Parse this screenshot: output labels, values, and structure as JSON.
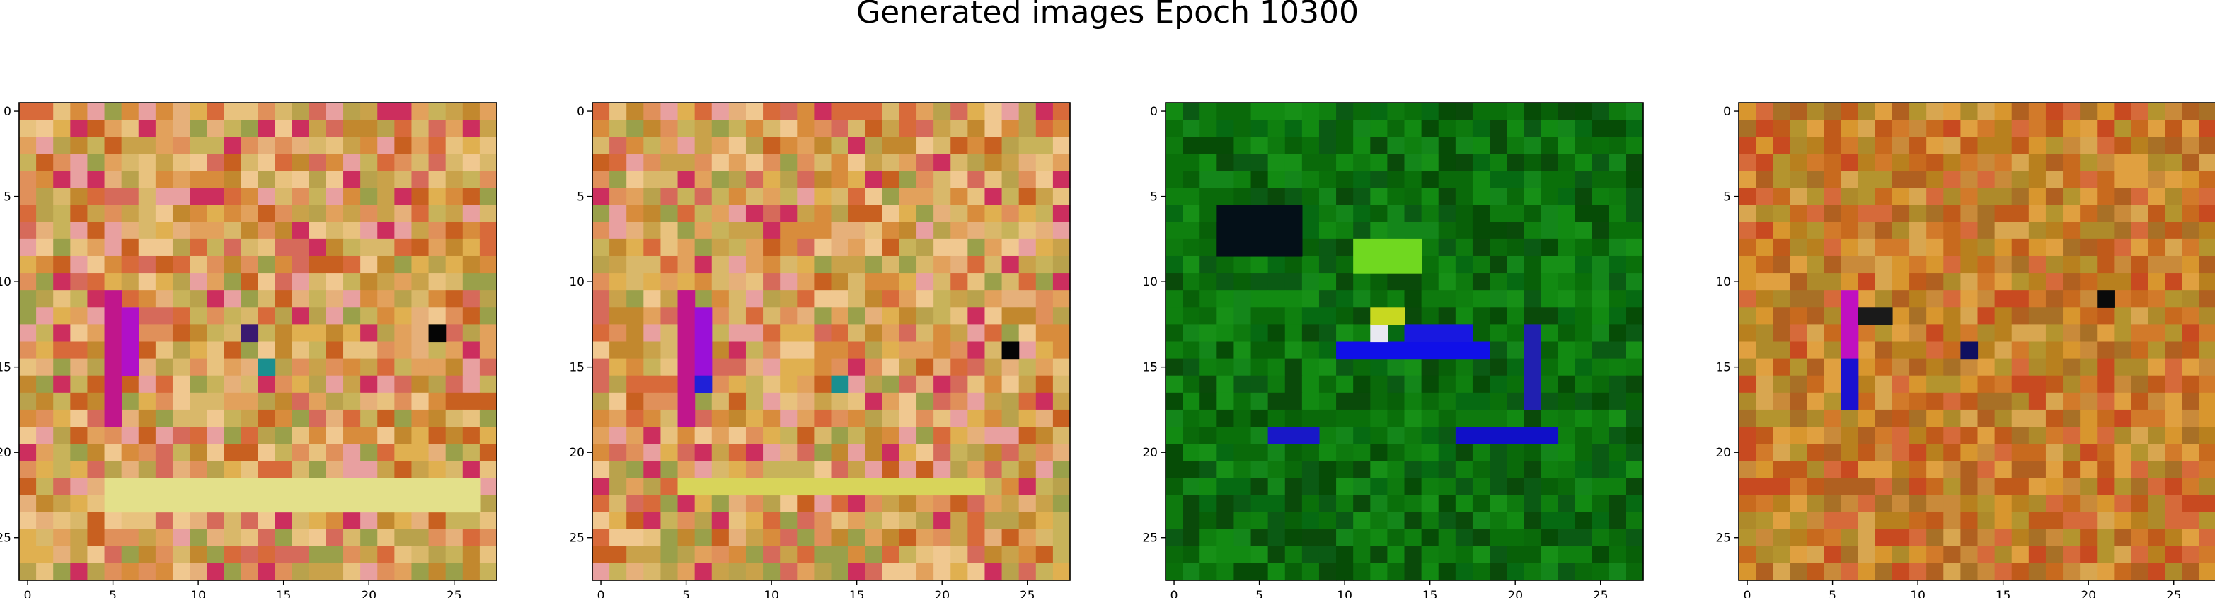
{
  "figure": {
    "title": "Generated images Epoch 10300"
  },
  "chart_data": [
    {
      "type": "heatmap",
      "name": "generated-image-1",
      "grid_size": [
        28,
        28
      ],
      "xlim": [
        -0.5,
        27.5
      ],
      "ylim": [
        27.5,
        -0.5
      ],
      "x_ticks": [
        0,
        5,
        10,
        15,
        20,
        25
      ],
      "y_ticks": [
        0,
        5,
        10,
        15,
        20,
        25
      ],
      "palette": "warm",
      "seed": 11,
      "highlights": [
        {
          "x": 5,
          "y": 11,
          "w": 1,
          "h": 8,
          "color": "#c0168c"
        },
        {
          "x": 6,
          "y": 12,
          "w": 1,
          "h": 4,
          "color": "#b010c8"
        },
        {
          "x": 5,
          "y": 22,
          "w": 22,
          "h": 2,
          "color": "#e3e08a"
        },
        {
          "x": 24,
          "y": 13,
          "w": 1,
          "h": 1,
          "color": "#050505"
        },
        {
          "x": 14,
          "y": 15,
          "w": 1,
          "h": 1,
          "color": "#1a8f8f"
        },
        {
          "x": 13,
          "y": 13,
          "w": 1,
          "h": 1,
          "color": "#3a1a70"
        }
      ]
    },
    {
      "type": "heatmap",
      "name": "generated-image-2",
      "grid_size": [
        28,
        28
      ],
      "xlim": [
        -0.5,
        27.5
      ],
      "ylim": [
        27.5,
        -0.5
      ],
      "x_ticks": [
        0,
        5,
        10,
        15,
        20,
        25
      ],
      "y_ticks": [
        0,
        5,
        10,
        15,
        20,
        25
      ],
      "palette": "warm",
      "seed": 23,
      "highlights": [
        {
          "x": 5,
          "y": 11,
          "w": 1,
          "h": 8,
          "color": "#c0168c"
        },
        {
          "x": 6,
          "y": 12,
          "w": 1,
          "h": 4,
          "color": "#9a10d8"
        },
        {
          "x": 6,
          "y": 16,
          "w": 1,
          "h": 1,
          "color": "#2020d8"
        },
        {
          "x": 5,
          "y": 22,
          "w": 18,
          "h": 1,
          "color": "#d8d45a"
        },
        {
          "x": 24,
          "y": 14,
          "w": 1,
          "h": 1,
          "color": "#050505"
        },
        {
          "x": 14,
          "y": 16,
          "w": 1,
          "h": 1,
          "color": "#1a8f8f"
        }
      ]
    },
    {
      "type": "heatmap",
      "name": "generated-image-3",
      "grid_size": [
        28,
        28
      ],
      "xlim": [
        -0.5,
        27.5
      ],
      "ylim": [
        27.5,
        -0.5
      ],
      "x_ticks": [
        0,
        5,
        10,
        15,
        20,
        25
      ],
      "y_ticks": [
        0,
        5,
        10,
        15,
        20,
        25
      ],
      "palette": "green",
      "seed": 37,
      "highlights": [
        {
          "x": 10,
          "y": 14,
          "w": 9,
          "h": 1,
          "color": "#1010e8"
        },
        {
          "x": 14,
          "y": 13,
          "w": 4,
          "h": 1,
          "color": "#1818e0"
        },
        {
          "x": 12,
          "y": 13,
          "w": 1,
          "h": 1,
          "color": "#e8e8f0"
        },
        {
          "x": 12,
          "y": 12,
          "w": 2,
          "h": 1,
          "color": "#c8d820"
        },
        {
          "x": 17,
          "y": 19,
          "w": 6,
          "h": 1,
          "color": "#1010c8"
        },
        {
          "x": 21,
          "y": 13,
          "w": 1,
          "h": 5,
          "color": "#2020b0"
        },
        {
          "x": 6,
          "y": 19,
          "w": 3,
          "h": 1,
          "color": "#1818c8"
        },
        {
          "x": 3,
          "y": 6,
          "w": 5,
          "h": 3,
          "color": "#041018"
        },
        {
          "x": 11,
          "y": 8,
          "w": 4,
          "h": 2,
          "color": "#70d820"
        }
      ]
    },
    {
      "type": "heatmap",
      "name": "generated-image-4",
      "grid_size": [
        28,
        28
      ],
      "xlim": [
        -0.5,
        27.5
      ],
      "ylim": [
        27.5,
        -0.5
      ],
      "x_ticks": [
        0,
        5,
        10,
        15,
        20,
        25
      ],
      "y_ticks": [
        0,
        5,
        10,
        15,
        20,
        25
      ],
      "palette": "warm-dark",
      "seed": 51,
      "highlights": [
        {
          "x": 6,
          "y": 11,
          "w": 1,
          "h": 4,
          "color": "#c010c0"
        },
        {
          "x": 6,
          "y": 15,
          "w": 1,
          "h": 3,
          "color": "#1a10d0"
        },
        {
          "x": 7,
          "y": 12,
          "w": 2,
          "h": 1,
          "color": "#1a1a1a"
        },
        {
          "x": 21,
          "y": 11,
          "w": 1,
          "h": 1,
          "color": "#0a0a0a"
        },
        {
          "x": 13,
          "y": 14,
          "w": 1,
          "h": 1,
          "color": "#101060"
        }
      ]
    }
  ]
}
